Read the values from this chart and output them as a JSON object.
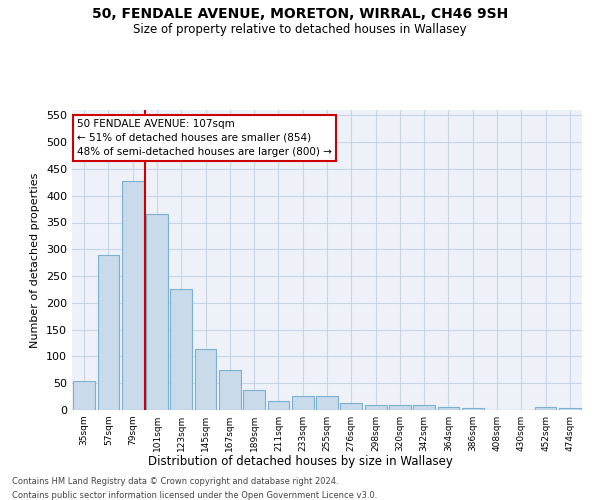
{
  "title": "50, FENDALE AVENUE, MORETON, WIRRAL, CH46 9SH",
  "subtitle": "Size of property relative to detached houses in Wallasey",
  "xlabel": "Distribution of detached houses by size in Wallasey",
  "ylabel": "Number of detached properties",
  "categories": [
    "35sqm",
    "57sqm",
    "79sqm",
    "101sqm",
    "123sqm",
    "145sqm",
    "167sqm",
    "189sqm",
    "211sqm",
    "233sqm",
    "255sqm",
    "276sqm",
    "298sqm",
    "320sqm",
    "342sqm",
    "364sqm",
    "386sqm",
    "408sqm",
    "430sqm",
    "452sqm",
    "474sqm"
  ],
  "values": [
    55,
    290,
    428,
    365,
    225,
    113,
    75,
    38,
    17,
    27,
    27,
    14,
    9,
    9,
    9,
    5,
    3,
    0,
    0,
    6,
    3
  ],
  "bar_color": "#c9daea",
  "bar_edge_color": "#7bafd4",
  "highlight_bin_index": 2,
  "annotation_title": "50 FENDALE AVENUE: 107sqm",
  "annotation_line1": "← 51% of detached houses are smaller (854)",
  "annotation_line2": "48% of semi-detached houses are larger (800) →",
  "vline_color": "#cc0000",
  "annotation_box_color": "#ffffff",
  "annotation_box_edge": "#cc0000",
  "grid_color": "#c8d4e8",
  "background_color": "#eef2f8",
  "footer1": "Contains HM Land Registry data © Crown copyright and database right 2024.",
  "footer2": "Contains public sector information licensed under the Open Government Licence v3.0.",
  "ylim": [
    0,
    560
  ],
  "yticks": [
    0,
    50,
    100,
    150,
    200,
    250,
    300,
    350,
    400,
    450,
    500,
    550
  ]
}
